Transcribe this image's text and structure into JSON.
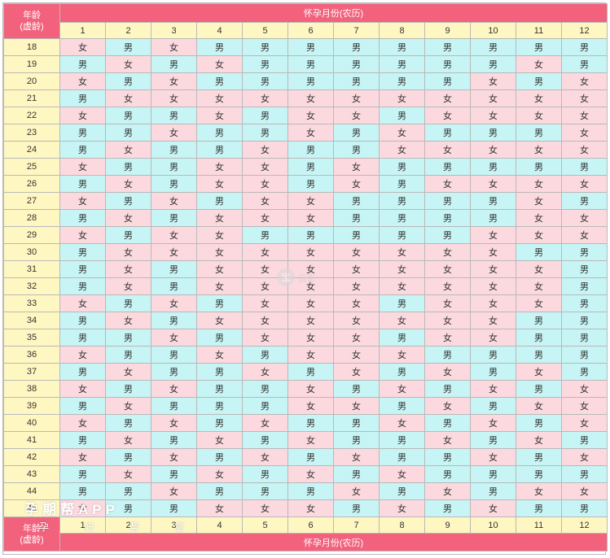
{
  "header": {
    "corner_line1": "年龄",
    "corner_line2": "(虚龄)",
    "month_title": "怀孕月份(农历)"
  },
  "footer": {
    "corner_line1": "年龄",
    "corner_line2": "(虚龄)",
    "month_title": "怀孕月份(农历)"
  },
  "months": [
    "1",
    "2",
    "3",
    "4",
    "5",
    "6",
    "7",
    "8",
    "9",
    "10",
    "11",
    "12"
  ],
  "rows": [
    {
      "age": "18",
      "cells": [
        "女",
        "男",
        "女",
        "男",
        "男",
        "男",
        "男",
        "男",
        "男",
        "男",
        "男",
        "男"
      ]
    },
    {
      "age": "19",
      "cells": [
        "男",
        "女",
        "男",
        "女",
        "男",
        "男",
        "男",
        "男",
        "男",
        "男",
        "女",
        "男"
      ]
    },
    {
      "age": "20",
      "cells": [
        "女",
        "男",
        "女",
        "男",
        "男",
        "男",
        "男",
        "男",
        "男",
        "女",
        "男",
        "女"
      ]
    },
    {
      "age": "21",
      "cells": [
        "男",
        "女",
        "女",
        "女",
        "女",
        "女",
        "女",
        "女",
        "女",
        "女",
        "女",
        "女"
      ]
    },
    {
      "age": "22",
      "cells": [
        "女",
        "男",
        "男",
        "女",
        "男",
        "女",
        "女",
        "男",
        "女",
        "女",
        "女",
        "女"
      ]
    },
    {
      "age": "23",
      "cells": [
        "男",
        "男",
        "女",
        "男",
        "男",
        "女",
        "男",
        "女",
        "男",
        "男",
        "男",
        "女"
      ]
    },
    {
      "age": "24",
      "cells": [
        "男",
        "女",
        "男",
        "男",
        "女",
        "男",
        "男",
        "女",
        "女",
        "女",
        "女",
        "女"
      ]
    },
    {
      "age": "25",
      "cells": [
        "女",
        "男",
        "男",
        "女",
        "女",
        "男",
        "女",
        "男",
        "男",
        "男",
        "男",
        "男"
      ]
    },
    {
      "age": "26",
      "cells": [
        "男",
        "女",
        "男",
        "女",
        "女",
        "男",
        "女",
        "男",
        "女",
        "女",
        "女",
        "女"
      ]
    },
    {
      "age": "27",
      "cells": [
        "女",
        "男",
        "女",
        "男",
        "女",
        "女",
        "男",
        "男",
        "男",
        "男",
        "女",
        "男"
      ]
    },
    {
      "age": "28",
      "cells": [
        "男",
        "女",
        "男",
        "女",
        "女",
        "女",
        "男",
        "男",
        "男",
        "男",
        "女",
        "女"
      ]
    },
    {
      "age": "29",
      "cells": [
        "女",
        "男",
        "女",
        "女",
        "男",
        "男",
        "男",
        "男",
        "男",
        "女",
        "女",
        "女"
      ]
    },
    {
      "age": "30",
      "cells": [
        "男",
        "女",
        "女",
        "女",
        "女",
        "女",
        "女",
        "女",
        "女",
        "女",
        "男",
        "男"
      ]
    },
    {
      "age": "31",
      "cells": [
        "男",
        "女",
        "男",
        "女",
        "女",
        "女",
        "女",
        "女",
        "女",
        "女",
        "女",
        "男"
      ]
    },
    {
      "age": "32",
      "cells": [
        "男",
        "女",
        "男",
        "女",
        "女",
        "女",
        "女",
        "女",
        "女",
        "女",
        "女",
        "男"
      ]
    },
    {
      "age": "33",
      "cells": [
        "女",
        "男",
        "女",
        "男",
        "女",
        "女",
        "女",
        "男",
        "女",
        "女",
        "女",
        "男"
      ]
    },
    {
      "age": "34",
      "cells": [
        "男",
        "女",
        "男",
        "女",
        "女",
        "女",
        "女",
        "女",
        "女",
        "女",
        "男",
        "男"
      ]
    },
    {
      "age": "35",
      "cells": [
        "男",
        "男",
        "女",
        "男",
        "女",
        "女",
        "女",
        "男",
        "女",
        "女",
        "男",
        "男"
      ]
    },
    {
      "age": "36",
      "cells": [
        "女",
        "男",
        "男",
        "女",
        "男",
        "女",
        "女",
        "女",
        "男",
        "男",
        "男",
        "男"
      ]
    },
    {
      "age": "37",
      "cells": [
        "男",
        "女",
        "男",
        "男",
        "女",
        "男",
        "女",
        "男",
        "女",
        "男",
        "女",
        "男"
      ]
    },
    {
      "age": "38",
      "cells": [
        "女",
        "男",
        "女",
        "男",
        "男",
        "女",
        "男",
        "女",
        "男",
        "女",
        "男",
        "女"
      ]
    },
    {
      "age": "39",
      "cells": [
        "男",
        "女",
        "男",
        "男",
        "男",
        "女",
        "女",
        "男",
        "女",
        "男",
        "女",
        "女"
      ]
    },
    {
      "age": "40",
      "cells": [
        "女",
        "男",
        "女",
        "男",
        "女",
        "男",
        "男",
        "女",
        "男",
        "女",
        "男",
        "女"
      ]
    },
    {
      "age": "41",
      "cells": [
        "男",
        "女",
        "男",
        "女",
        "男",
        "女",
        "男",
        "男",
        "女",
        "男",
        "女",
        "男"
      ]
    },
    {
      "age": "42",
      "cells": [
        "女",
        "男",
        "女",
        "男",
        "女",
        "男",
        "女",
        "男",
        "男",
        "女",
        "男",
        "女"
      ]
    },
    {
      "age": "43",
      "cells": [
        "男",
        "女",
        "男",
        "女",
        "男",
        "女",
        "男",
        "女",
        "男",
        "男",
        "男",
        "男"
      ]
    },
    {
      "age": "44",
      "cells": [
        "男",
        "男",
        "女",
        "男",
        "男",
        "男",
        "女",
        "男",
        "女",
        "男",
        "女",
        "女"
      ]
    },
    {
      "age": "45",
      "cells": [
        "女",
        "男",
        "男",
        "女",
        "女",
        "女",
        "男",
        "女",
        "男",
        "女",
        "男",
        "男"
      ]
    }
  ],
  "watermark": {
    "icon": "camera-logo-icon",
    "glyph": "宝",
    "text": "摄影"
  },
  "brand": {
    "line1": "孕期帮APP",
    "line2": "孕 妇 帮 堂"
  },
  "colors": {
    "header_bg": "#f2627d",
    "month_bg": "#fff7c1",
    "boy_bg": "#c7f4f4",
    "girl_bg": "#fcd9df",
    "border": "#b9b9b9"
  }
}
